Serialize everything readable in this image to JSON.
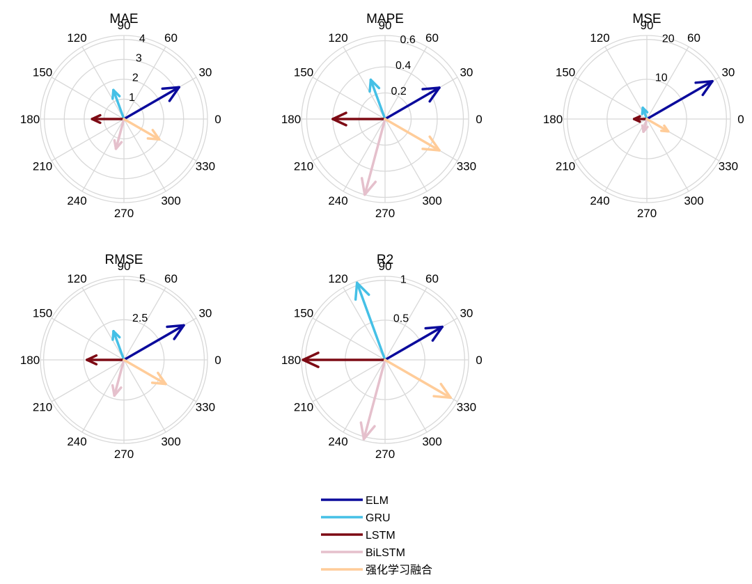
{
  "chart_data": {
    "type": "polar-compass",
    "angle_ticks": [
      "0",
      "30",
      "60",
      "90",
      "120",
      "150",
      "180",
      "210",
      "240",
      "270",
      "300",
      "330"
    ],
    "series": [
      {
        "name": "ELM",
        "color": "#0b0b9c",
        "angle": 30
      },
      {
        "name": "GRU",
        "color": "#45c0e6",
        "angle": 110
      },
      {
        "name": "LSTM",
        "color": "#7d0a14",
        "angle": 180
      },
      {
        "name": "BiLSTM",
        "color": "#e5c0cc",
        "angle": 255
      },
      {
        "name": "强化学习融合",
        "color": "#ffcc99",
        "angle": 330
      }
    ],
    "panels": [
      {
        "title": "MAE",
        "rmax": 4.2,
        "rticks": [
          {
            "value": 1,
            "label": "1"
          },
          {
            "value": 2,
            "label": "2"
          },
          {
            "value": 3,
            "label": "3"
          },
          {
            "value": 4,
            "label": "4"
          }
        ],
        "values": [
          3.2,
          1.55,
          1.6,
          1.55,
          2.05
        ]
      },
      {
        "title": "MAPE",
        "rmax": 0.64,
        "rticks": [
          {
            "value": 0.2,
            "label": "0.2"
          },
          {
            "value": 0.4,
            "label": "0.4"
          },
          {
            "value": 0.6,
            "label": "0.6"
          }
        ],
        "values": [
          0.48,
          0.32,
          0.4,
          0.6,
          0.48
        ]
      },
      {
        "title": "MSE",
        "rmax": 21,
        "rticks": [
          {
            "value": 10,
            "label": "10"
          },
          {
            "value": 20,
            "label": "20"
          }
        ],
        "values": [
          19,
          3,
          3.2,
          3.3,
          6.2
        ]
      },
      {
        "title": "RMSE",
        "rmax": 5.2,
        "rticks": [
          {
            "value": 2.5,
            "label": "2.5"
          },
          {
            "value": 5,
            "label": "5"
          }
        ],
        "values": [
          4.3,
          1.9,
          2.3,
          2.3,
          3.0
        ]
      },
      {
        "title": "R2",
        "rmax": 1.05,
        "rticks": [
          {
            "value": 0.5,
            "label": "0.5"
          },
          {
            "value": 1,
            "label": "1"
          }
        ],
        "values": [
          0.83,
          1.03,
          1.03,
          1.03,
          0.95
        ]
      }
    ]
  }
}
